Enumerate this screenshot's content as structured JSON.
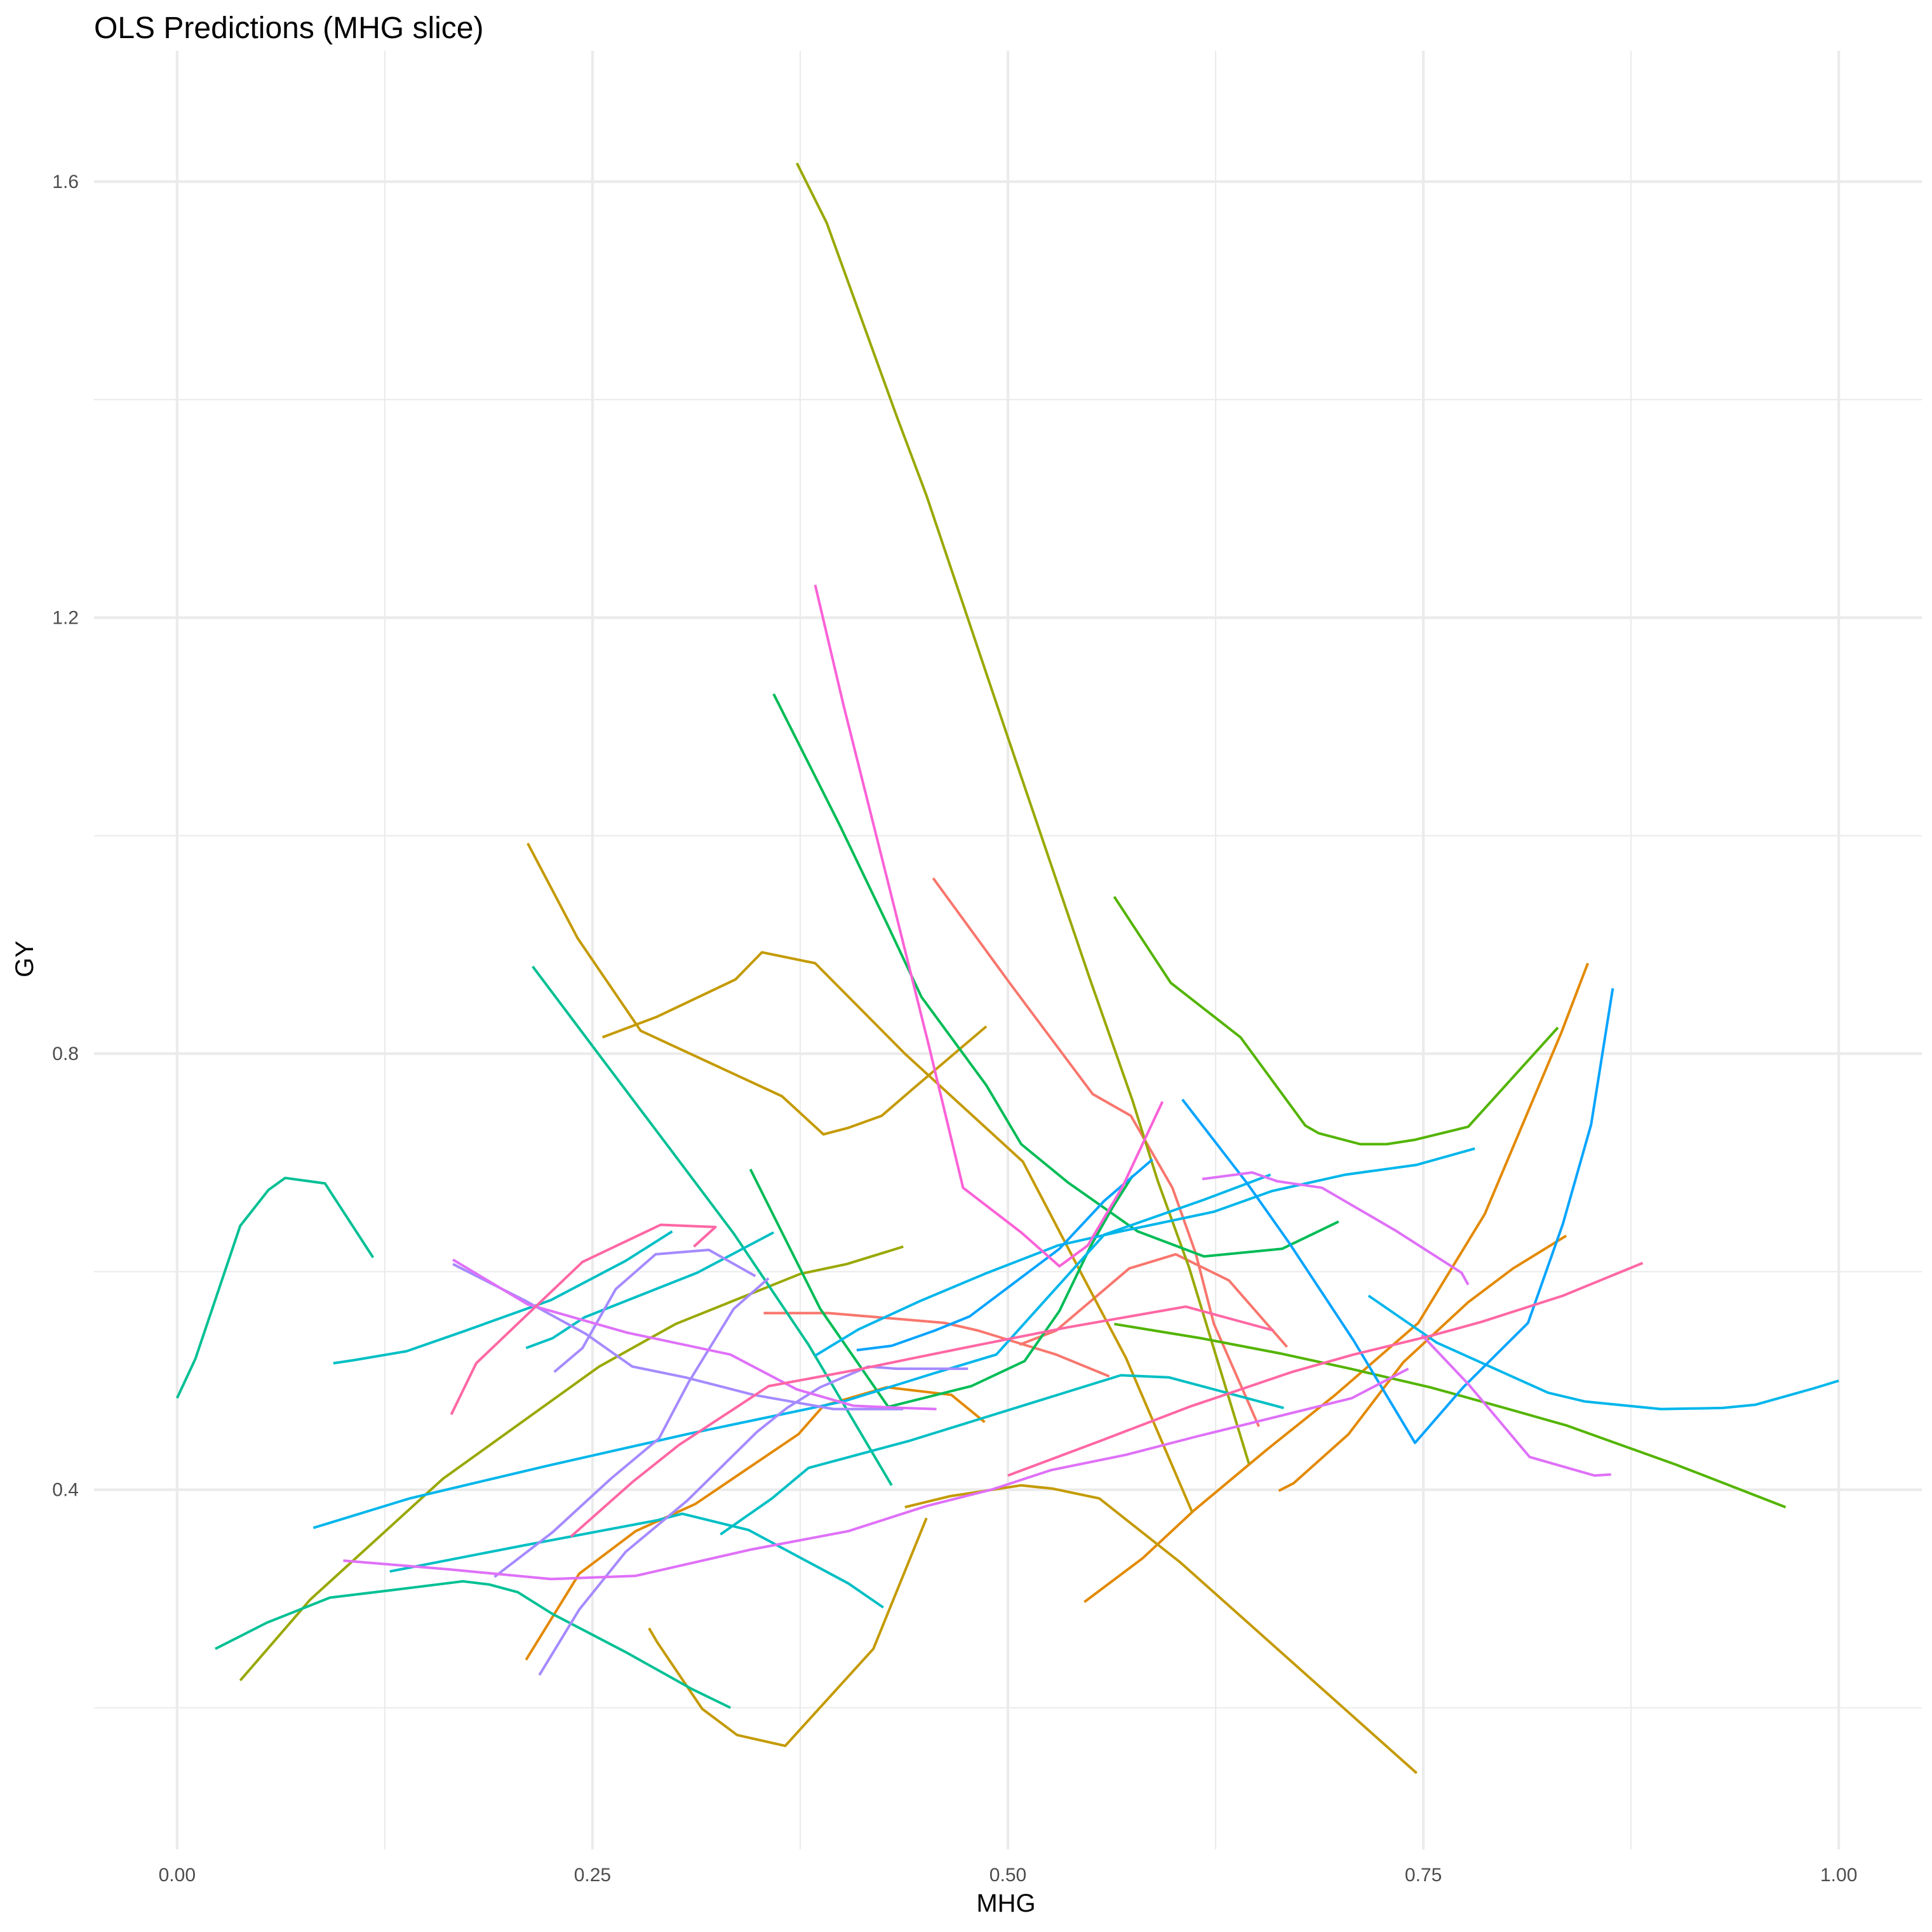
{
  "chart_data": {
    "type": "line",
    "title": "OLS  Predictions (MHG slice)",
    "xlabel": "MHG",
    "ylabel": "GY",
    "xlim": [
      -0.05,
      1.05
    ],
    "ylim": [
      0.07,
      1.72
    ],
    "x_ticks": [
      0.0,
      0.25,
      0.5,
      0.75,
      1.0
    ],
    "x_tick_labels": [
      "0.00",
      "0.25",
      "0.50",
      "0.75",
      "1.00"
    ],
    "x_minor_ticks": [
      0.125,
      0.375,
      0.625,
      0.875
    ],
    "y_ticks": [
      0.4,
      0.8,
      1.2,
      1.6
    ],
    "y_tick_labels": [
      "0.4",
      "0.8",
      "1.2",
      "1.6"
    ],
    "y_minor_ticks": [
      0.2,
      0.6,
      1.0,
      1.4
    ],
    "grid": true,
    "legend": "none",
    "series": [
      {
        "color": "#F8766D",
        "x": [
          0.353,
          0.392,
          0.416,
          0.462,
          0.482,
          0.529,
          0.561
        ],
        "y": [
          0.562,
          0.562,
          0.559,
          0.553,
          0.546,
          0.524,
          0.504
        ]
      },
      {
        "color": "#F8766D",
        "x": [
          0.455,
          0.501,
          0.551,
          0.574,
          0.599,
          0.613,
          0.624,
          0.651
        ],
        "y": [
          0.961,
          0.865,
          0.763,
          0.743,
          0.677,
          0.617,
          0.552,
          0.458
        ]
      },
      {
        "color": "#F8766D",
        "x": [
          0.507,
          0.529,
          0.573,
          0.601,
          0.633,
          0.668
        ],
        "y": [
          0.533,
          0.546,
          0.603,
          0.616,
          0.592,
          0.531
        ]
      },
      {
        "color": "#E38900",
        "x": [
          0.21,
          0.242,
          0.276,
          0.312,
          0.374,
          0.389,
          0.427,
          0.466,
          0.486
        ],
        "y": [
          0.244,
          0.323,
          0.362,
          0.387,
          0.451,
          0.477,
          0.494,
          0.487,
          0.462
        ]
      },
      {
        "color": "#E38900",
        "x": [
          0.546,
          0.581,
          0.612,
          0.656,
          0.697,
          0.747,
          0.787,
          0.833,
          0.849
        ],
        "y": [
          0.297,
          0.337,
          0.381,
          0.437,
          0.487,
          0.553,
          0.653,
          0.819,
          0.883
        ]
      },
      {
        "color": "#E38900",
        "x": [
          0.663,
          0.672,
          0.705,
          0.738,
          0.777,
          0.804,
          0.836
        ],
        "y": [
          0.399,
          0.406,
          0.451,
          0.517,
          0.572,
          0.603,
          0.633
        ]
      },
      {
        "color": "#C49A00",
        "x": [
          0.211,
          0.241,
          0.279,
          0.364,
          0.389,
          0.404,
          0.424,
          0.443,
          0.487
        ],
        "y": [
          0.993,
          0.906,
          0.821,
          0.761,
          0.726,
          0.732,
          0.743,
          0.768,
          0.825
        ]
      },
      {
        "color": "#C49A00",
        "x": [
          0.284,
          0.289,
          0.316,
          0.337,
          0.366,
          0.419,
          0.451
        ],
        "y": [
          0.273,
          0.26,
          0.199,
          0.175,
          0.165,
          0.254,
          0.374
        ]
      },
      {
        "color": "#C49A00",
        "x": [
          0.438,
          0.465,
          0.508,
          0.527,
          0.555,
          0.604,
          0.746
        ],
        "y": [
          0.384,
          0.394,
          0.404,
          0.401,
          0.392,
          0.333,
          0.14
        ]
      },
      {
        "color": "#C49A00",
        "x": [
          0.256,
          0.289,
          0.336,
          0.352,
          0.384,
          0.438,
          0.509,
          0.52,
          0.546,
          0.571,
          0.611
        ],
        "y": [
          0.815,
          0.834,
          0.868,
          0.893,
          0.883,
          0.8,
          0.701,
          0.669,
          0.593,
          0.521,
          0.379
        ]
      },
      {
        "color": "#99A800",
        "x": [
          0.373,
          0.391,
          0.433,
          0.451,
          0.5,
          0.549,
          0.575,
          0.59,
          0.609,
          0.645
        ],
        "y": [
          1.617,
          1.562,
          1.385,
          1.312,
          1.09,
          0.87,
          0.757,
          0.684,
          0.604,
          0.424
        ]
      },
      {
        "color": "#99A800",
        "x": [
          0.038,
          0.08,
          0.16,
          0.254,
          0.3,
          0.375,
          0.403,
          0.437
        ],
        "y": [
          0.225,
          0.299,
          0.41,
          0.513,
          0.552,
          0.598,
          0.607,
          0.623
        ]
      },
      {
        "color": "#53B400",
        "x": [
          0.564,
          0.598,
          0.64,
          0.679,
          0.687,
          0.712,
          0.728,
          0.745,
          0.777,
          0.831
        ],
        "y": [
          0.944,
          0.865,
          0.815,
          0.734,
          0.727,
          0.717,
          0.717,
          0.721,
          0.733,
          0.824
        ]
      },
      {
        "color": "#53B400",
        "x": [
          0.564,
          0.616,
          0.664,
          0.706,
          0.754,
          0.799,
          0.836,
          0.902,
          0.968
        ],
        "y": [
          0.552,
          0.539,
          0.525,
          0.511,
          0.494,
          0.475,
          0.459,
          0.423,
          0.384
        ]
      },
      {
        "color": "#00BC56",
        "x": [
          0.345,
          0.387,
          0.428,
          0.478,
          0.51,
          0.531,
          0.55,
          0.563,
          0.575
        ],
        "y": [
          0.694,
          0.566,
          0.476,
          0.495,
          0.518,
          0.564,
          0.624,
          0.659,
          0.688
        ]
      },
      {
        "color": "#00BC56",
        "x": [
          0.359,
          0.399,
          0.427,
          0.448,
          0.487,
          0.508,
          0.536,
          0.578,
          0.618,
          0.665,
          0.699
        ],
        "y": [
          1.13,
          1.009,
          0.92,
          0.852,
          0.771,
          0.717,
          0.682,
          0.637,
          0.614,
          0.621,
          0.646
        ]
      },
      {
        "color": "#00C094",
        "x": [
          0.0,
          0.011,
          0.038,
          0.055,
          0.065,
          0.089,
          0.118
        ],
        "y": [
          0.484,
          0.52,
          0.642,
          0.675,
          0.686,
          0.681,
          0.613
        ]
      },
      {
        "color": "#00C094",
        "x": [
          0.023,
          0.054,
          0.092,
          0.13,
          0.172,
          0.188,
          0.205,
          0.226,
          0.27,
          0.31,
          0.333
        ],
        "y": [
          0.254,
          0.278,
          0.301,
          0.308,
          0.316,
          0.313,
          0.306,
          0.286,
          0.251,
          0.217,
          0.2
        ]
      },
      {
        "color": "#00C094",
        "x": [
          0.214,
          0.251,
          0.297,
          0.335,
          0.38,
          0.43
        ],
        "y": [
          0.88,
          0.805,
          0.712,
          0.635,
          0.533,
          0.404
        ]
      },
      {
        "color": "#00BFC4",
        "x": [
          0.094,
          0.107,
          0.138,
          0.172,
          0.225,
          0.27,
          0.298
        ],
        "y": [
          0.516,
          0.519,
          0.527,
          0.545,
          0.574,
          0.61,
          0.637
        ]
      },
      {
        "color": "#00BFC4",
        "x": [
          0.21,
          0.226,
          0.245,
          0.313,
          0.359
        ],
        "y": [
          0.53,
          0.539,
          0.558,
          0.599,
          0.636
        ]
      },
      {
        "color": "#00BFC4",
        "x": [
          0.128,
          0.209,
          0.289,
          0.304,
          0.344,
          0.404,
          0.425
        ],
        "y": [
          0.325,
          0.349,
          0.372,
          0.378,
          0.363,
          0.314,
          0.292
        ]
      },
      {
        "color": "#00BFC4",
        "x": [
          0.327,
          0.358,
          0.38,
          0.441,
          0.568,
          0.597,
          0.666
        ],
        "y": [
          0.359,
          0.392,
          0.42,
          0.445,
          0.505,
          0.503,
          0.475
        ]
      },
      {
        "color": "#00B6EB",
        "x": [
          0.082,
          0.14,
          0.223,
          0.307,
          0.401,
          0.456,
          0.493,
          0.558,
          0.618,
          0.658
        ],
        "y": [
          0.365,
          0.392,
          0.422,
          0.451,
          0.481,
          0.507,
          0.524,
          0.634,
          0.666,
          0.689
        ]
      },
      {
        "color": "#00B6EB",
        "x": [
          0.384,
          0.41,
          0.447,
          0.486,
          0.53,
          0.568,
          0.624,
          0.659,
          0.703,
          0.746,
          0.781
        ],
        "y": [
          0.523,
          0.547,
          0.573,
          0.598,
          0.624,
          0.637,
          0.655,
          0.674,
          0.689,
          0.698,
          0.713
        ]
      },
      {
        "color": "#00B6EB",
        "x": [
          0.717,
          0.758,
          0.825,
          0.847,
          0.893,
          0.93,
          0.95,
          0.985,
          1.0
        ],
        "y": [
          0.578,
          0.535,
          0.489,
          0.481,
          0.474,
          0.475,
          0.478,
          0.493,
          0.5
        ]
      },
      {
        "color": "#06A4FF",
        "x": [
          0.605,
          0.644,
          0.669,
          0.708,
          0.745,
          0.774,
          0.813,
          0.834,
          0.851,
          0.864
        ],
        "y": [
          0.758,
          0.681,
          0.627,
          0.537,
          0.443,
          0.494,
          0.553,
          0.644,
          0.735,
          0.86
        ]
      },
      {
        "color": "#06A4FF",
        "x": [
          0.409,
          0.43,
          0.456,
          0.477,
          0.497,
          0.531,
          0.558,
          0.587
        ],
        "y": [
          0.528,
          0.532,
          0.546,
          0.559,
          0.582,
          0.621,
          0.665,
          0.703
        ]
      },
      {
        "color": "#A58AFF",
        "x": [
          0.218,
          0.242,
          0.27,
          0.307,
          0.349,
          0.367,
          0.387,
          0.416,
          0.433,
          0.476
        ],
        "y": [
          0.23,
          0.29,
          0.343,
          0.39,
          0.453,
          0.475,
          0.494,
          0.513,
          0.511,
          0.511
        ]
      },
      {
        "color": "#A58AFF",
        "x": [
          0.166,
          0.21,
          0.246,
          0.274,
          0.306,
          0.347,
          0.395,
          0.437
        ],
        "y": [
          0.607,
          0.573,
          0.543,
          0.513,
          0.503,
          0.487,
          0.474,
          0.474
        ]
      },
      {
        "color": "#A58AFF",
        "x": [
          0.227,
          0.244,
          0.264,
          0.288,
          0.32,
          0.348
        ],
        "y": [
          0.508,
          0.53,
          0.584,
          0.616,
          0.62,
          0.596
        ]
      },
      {
        "color": "#A58AFF",
        "x": [
          0.191,
          0.226,
          0.261,
          0.29,
          0.308,
          0.335,
          0.356
        ],
        "y": [
          0.32,
          0.361,
          0.41,
          0.447,
          0.499,
          0.566,
          0.594
        ]
      },
      {
        "color": "#DF70F8",
        "x": [
          0.1,
          0.163,
          0.225,
          0.276,
          0.345,
          0.404,
          0.451,
          0.49,
          0.526,
          0.571,
          0.614,
          0.707,
          0.741
        ],
        "y": [
          0.335,
          0.327,
          0.318,
          0.321,
          0.345,
          0.362,
          0.385,
          0.4,
          0.418,
          0.432,
          0.449,
          0.484,
          0.511
        ]
      },
      {
        "color": "#DF70F8",
        "x": [
          0.166,
          0.211,
          0.271,
          0.333,
          0.373,
          0.407,
          0.437,
          0.457
        ],
        "y": [
          0.611,
          0.57,
          0.544,
          0.524,
          0.492,
          0.477,
          0.475,
          0.474
        ]
      },
      {
        "color": "#DF70F8",
        "x": [
          0.617,
          0.647,
          0.662,
          0.689,
          0.733,
          0.773,
          0.777
        ],
        "y": [
          0.685,
          0.691,
          0.683,
          0.677,
          0.638,
          0.599,
          0.588
        ]
      },
      {
        "color": "#DF70F8",
        "x": [
          0.749,
          0.777,
          0.814,
          0.853,
          0.863
        ],
        "y": [
          0.542,
          0.497,
          0.43,
          0.413,
          0.414
        ]
      },
      {
        "color": "#FB61D7",
        "x": [
          0.384,
          0.401,
          0.43,
          0.452,
          0.473,
          0.508,
          0.531,
          0.548,
          0.569,
          0.593
        ],
        "y": [
          1.23,
          1.12,
          0.944,
          0.81,
          0.677,
          0.636,
          0.605,
          0.624,
          0.678,
          0.756
        ]
      },
      {
        "color": "#FF67A4",
        "x": [
          0.165,
          0.18,
          0.244,
          0.291,
          0.324,
          0.311
        ],
        "y": [
          0.469,
          0.516,
          0.609,
          0.643,
          0.641,
          0.623
        ]
      },
      {
        "color": "#FF67A4",
        "x": [
          0.237,
          0.274,
          0.302,
          0.336,
          0.356,
          0.409,
          0.441,
          0.483,
          0.536,
          0.607,
          0.66
        ],
        "y": [
          0.357,
          0.407,
          0.441,
          0.475,
          0.495,
          0.51,
          0.52,
          0.533,
          0.549,
          0.568,
          0.546
        ]
      },
      {
        "color": "#FF67A4",
        "x": [
          0.5,
          0.556,
          0.609,
          0.671,
          0.708,
          0.754,
          0.785,
          0.834,
          0.882
        ],
        "y": [
          0.413,
          0.445,
          0.476,
          0.508,
          0.524,
          0.541,
          0.554,
          0.578,
          0.608
        ]
      }
    ]
  }
}
